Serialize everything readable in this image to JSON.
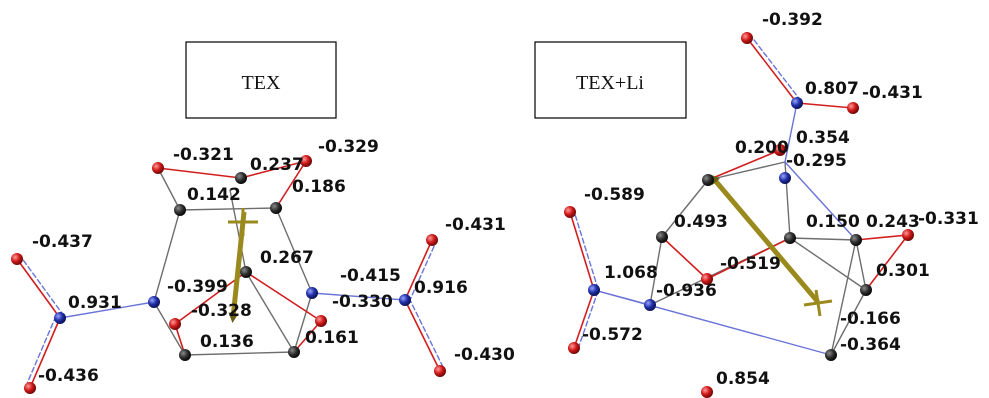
{
  "panels": [
    {
      "title": "TEX",
      "charges": [
        "-0.321",
        "0.237",
        "-0.329",
        "0.142",
        "0.186",
        "-0.431",
        "-0.437",
        "0.267",
        "-0.415",
        "-0.399",
        "0.931",
        "-0.328",
        "-0.330",
        "0.916",
        "0.136",
        "0.161",
        "-0.430",
        "-0.436"
      ]
    },
    {
      "title": "TEX+Li",
      "charges": [
        "-0.392",
        "0.807",
        "-0.431",
        "0.200",
        "0.354",
        "-0.295",
        "-0.589",
        "0.493",
        "0.150",
        "0.243",
        "-0.331",
        "-0.519",
        "1.068",
        "-0.936",
        "0.301",
        "-0.572",
        "-0.166",
        "-0.364",
        "0.854"
      ]
    }
  ],
  "colors": {
    "carbon": "#1e1e1e",
    "oxygen": "#c8141e",
    "nitrogen": "#1c2a9a",
    "bond": "#6e6e6e",
    "bond_red": "#d21e1e",
    "bond_blue": "#6a74d8",
    "dipole": "#9a8a1e"
  }
}
